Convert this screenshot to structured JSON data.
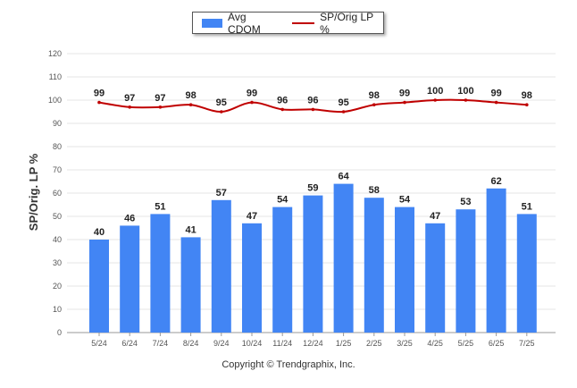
{
  "chart_data": {
    "type": "bar",
    "categories": [
      "5/24",
      "6/24",
      "7/24",
      "8/24",
      "9/24",
      "10/24",
      "11/24",
      "12/24",
      "1/25",
      "2/25",
      "3/25",
      "4/25",
      "5/25",
      "6/25",
      "7/25"
    ],
    "series": [
      {
        "name": "Avg CDOM",
        "type": "bar",
        "color": "#4285f4",
        "values": [
          40,
          46,
          51,
          41,
          57,
          47,
          54,
          59,
          64,
          58,
          54,
          47,
          53,
          62,
          51
        ]
      },
      {
        "name": "SP/Orig LP %",
        "type": "line",
        "color": "#c00000",
        "values": [
          99,
          97,
          97,
          98,
          95,
          99,
          96,
          96,
          95,
          98,
          99,
          100,
          100,
          99,
          98
        ]
      }
    ],
    "ylabel": "SP/Orig. LP %",
    "ylim": [
      0,
      120
    ],
    "yticks": [
      0,
      10,
      20,
      30,
      40,
      50,
      60,
      70,
      80,
      90,
      100,
      110,
      120
    ],
    "grid": true,
    "legend_position": "top"
  },
  "footer": {
    "copyright": "Copyright © Trendgraphix, Inc."
  }
}
